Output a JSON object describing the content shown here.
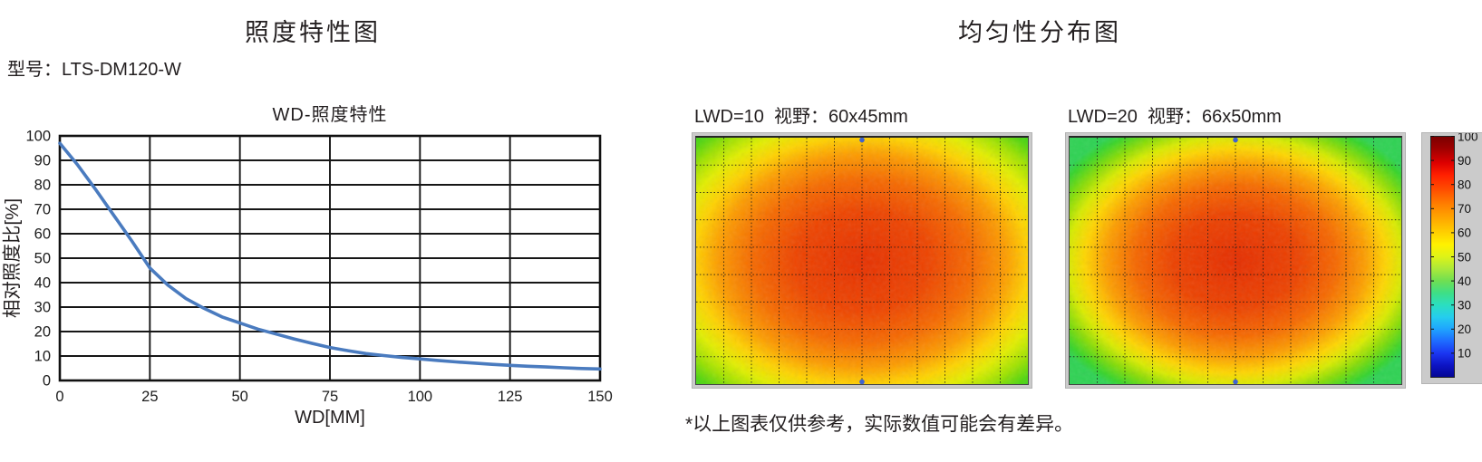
{
  "left_section": {
    "title": "照度特性图",
    "model_label": "型号：LTS-DM120-W"
  },
  "right_section": {
    "title": "均匀性分布图",
    "footnote": "*以上图表仅供参考，实际数值可能会有差异。"
  },
  "colors": {
    "text": "#231f20",
    "grid": "#161616",
    "curve_blue": "#4a7bbf",
    "panel_gray": "#cbcbcb",
    "marker_blue": "#3f63cf"
  },
  "chart_data": [
    {
      "type": "line",
      "title": "WD-照度特性",
      "xlabel": "WD[MM]",
      "ylabel": "相对照度比[%]",
      "xlim": [
        0,
        150
      ],
      "ylim": [
        0,
        100
      ],
      "xticks": [
        0,
        25,
        50,
        75,
        100,
        125,
        150
      ],
      "yticks": [
        0,
        10,
        20,
        30,
        40,
        50,
        60,
        70,
        80,
        90,
        100
      ],
      "grid": "on",
      "line_color": "#4a7bbf",
      "x": [
        0,
        5,
        10,
        15,
        20,
        25,
        30,
        35,
        40,
        45,
        50,
        55,
        60,
        65,
        70,
        75,
        80,
        85,
        90,
        95,
        100,
        105,
        110,
        115,
        120,
        125,
        130,
        135,
        140,
        145,
        150
      ],
      "y": [
        97,
        88,
        78,
        67.5,
        57,
        46,
        39,
        33.5,
        29.5,
        26,
        23.5,
        21,
        19,
        17,
        15.2,
        13.5,
        12.2,
        11,
        10.2,
        9.4,
        8.8,
        8.2,
        7.6,
        7.1,
        6.6,
        6.2,
        5.8,
        5.5,
        5.2,
        4.9,
        4.7
      ]
    },
    {
      "type": "heatmap",
      "lwd": 10,
      "title": "LWD=10  视野：60x45mm",
      "field_of_view_mm": "60x45",
      "colormap": "jet",
      "value_range": [
        0,
        100
      ],
      "center_value": 92,
      "edge_value": 62,
      "corner_value": 46,
      "grid_cols": 12,
      "grid_rows": 9,
      "gradient_radius": 0.72,
      "noise_seed": 7,
      "marker_color": "#3f63cf",
      "gradient_stops": [
        [
          0,
          "#e73000"
        ],
        [
          0.28,
          "#ee4400"
        ],
        [
          0.46,
          "#f66a00"
        ],
        [
          0.6,
          "#fd9c00"
        ],
        [
          0.7,
          "#ffd300"
        ],
        [
          0.79,
          "#e3ef00"
        ],
        [
          0.875,
          "#9fe300"
        ],
        [
          0.95,
          "#52d60e"
        ],
        [
          1,
          "#37d41c"
        ]
      ]
    },
    {
      "type": "heatmap",
      "lwd": 20,
      "title": "LWD=20  视野：66x50mm",
      "field_of_view_mm": "66x50",
      "colormap": "jet",
      "value_range": [
        0,
        100
      ],
      "center_value": 90,
      "edge_value": 55,
      "corner_value": 44,
      "grid_cols": 12,
      "grid_rows": 9,
      "gradient_radius": 0.63,
      "noise_seed": 13,
      "marker_color": "#3f63cf",
      "gradient_stops": [
        [
          0,
          "#e62d00"
        ],
        [
          0.3,
          "#ed4200"
        ],
        [
          0.48,
          "#f66800"
        ],
        [
          0.62,
          "#fd9e00"
        ],
        [
          0.72,
          "#ffd600"
        ],
        [
          0.8,
          "#daec00"
        ],
        [
          0.88,
          "#86dd06"
        ],
        [
          0.96,
          "#36d52a"
        ],
        [
          1,
          "#2ed353"
        ]
      ]
    },
    {
      "type": "colorbar",
      "range": [
        0,
        100
      ],
      "colormap": "jet",
      "ticks": [
        100,
        90,
        80,
        70,
        60,
        50,
        40,
        30,
        20,
        10
      ],
      "stops": [
        [
          0,
          "#7a0000"
        ],
        [
          0.05,
          "#9e0000"
        ],
        [
          0.11,
          "#dd0000"
        ],
        [
          0.16,
          "#ff2000"
        ],
        [
          0.22,
          "#ff4d00"
        ],
        [
          0.28,
          "#ff7e00"
        ],
        [
          0.34,
          "#ffa700"
        ],
        [
          0.4,
          "#ffd000"
        ],
        [
          0.45,
          "#fff200"
        ],
        [
          0.5,
          "#ddf318"
        ],
        [
          0.55,
          "#abe93a"
        ],
        [
          0.6,
          "#6fdf52"
        ],
        [
          0.65,
          "#3edf86"
        ],
        [
          0.7,
          "#2bdfc0"
        ],
        [
          0.75,
          "#25cdee"
        ],
        [
          0.8,
          "#1fa4fe"
        ],
        [
          0.85,
          "#1e6bff"
        ],
        [
          0.9,
          "#1b36f2"
        ],
        [
          0.95,
          "#0d14c4"
        ],
        [
          1,
          "#050693"
        ]
      ]
    }
  ]
}
